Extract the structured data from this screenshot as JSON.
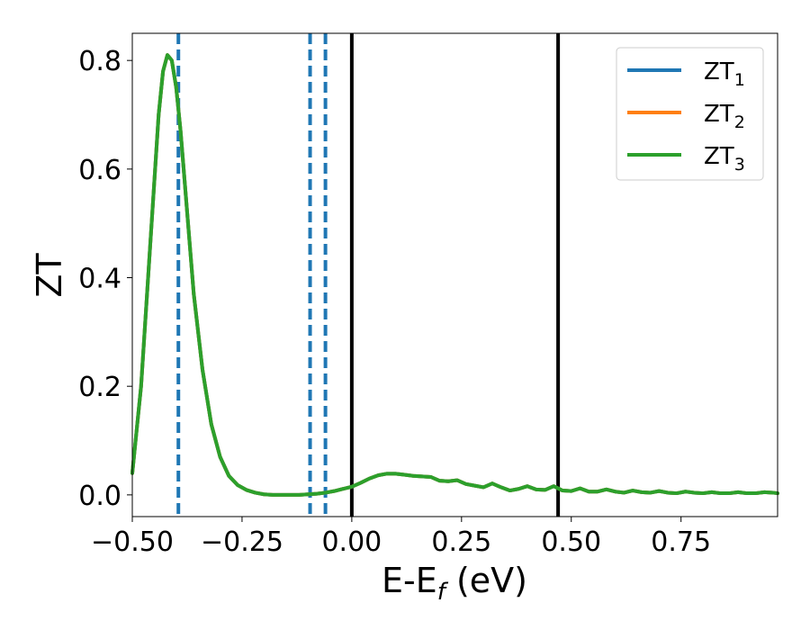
{
  "chart_data": {
    "type": "line",
    "xlabel": {
      "main": "E-E",
      "sub": "f",
      "suffix": " (eV)"
    },
    "ylabel": "ZT",
    "xlim": [
      -0.5,
      0.97
    ],
    "ylim": [
      -0.04,
      0.85
    ],
    "xticks": [
      {
        "value": -0.5,
        "label": "−0.50"
      },
      {
        "value": -0.25,
        "label": "−0.25"
      },
      {
        "value": 0.0,
        "label": "0.00"
      },
      {
        "value": 0.25,
        "label": "0.25"
      },
      {
        "value": 0.5,
        "label": "0.50"
      },
      {
        "value": 0.75,
        "label": "0.75"
      }
    ],
    "yticks": [
      {
        "value": 0.0,
        "label": "0.0"
      },
      {
        "value": 0.2,
        "label": "0.2"
      },
      {
        "value": 0.4,
        "label": "0.4"
      },
      {
        "value": 0.6,
        "label": "0.6"
      },
      {
        "value": 0.8,
        "label": "0.8"
      }
    ],
    "grid": false,
    "legend_position": "top-right",
    "series": [
      {
        "name": "ZT",
        "name_sub": "1",
        "color": "#1f77b4",
        "x": [
          -0.5,
          -0.48,
          -0.46,
          -0.44,
          -0.43,
          -0.42,
          -0.41,
          -0.4,
          -0.39,
          -0.38,
          -0.37,
          -0.36,
          -0.34,
          -0.32,
          -0.3,
          -0.28,
          -0.26,
          -0.24,
          -0.22,
          -0.2,
          -0.18,
          -0.16,
          -0.14,
          -0.12,
          -0.1,
          -0.08,
          -0.06,
          -0.04,
          -0.02,
          0.0,
          0.02,
          0.04,
          0.06,
          0.08,
          0.1,
          0.12,
          0.14,
          0.16,
          0.18,
          0.2,
          0.22,
          0.24,
          0.26,
          0.28,
          0.3,
          0.32,
          0.34,
          0.36,
          0.38,
          0.4,
          0.42,
          0.44,
          0.46,
          0.48,
          0.5,
          0.52,
          0.54,
          0.56,
          0.58,
          0.6,
          0.62,
          0.64,
          0.66,
          0.68,
          0.7,
          0.72,
          0.74,
          0.76,
          0.78,
          0.8,
          0.82,
          0.84,
          0.86,
          0.88,
          0.9,
          0.92,
          0.94,
          0.96,
          0.97
        ],
        "y": [
          0.04,
          0.2,
          0.45,
          0.7,
          0.78,
          0.81,
          0.8,
          0.75,
          0.67,
          0.57,
          0.47,
          0.37,
          0.23,
          0.13,
          0.07,
          0.035,
          0.018,
          0.009,
          0.004,
          0.001,
          0.0,
          0.0,
          0.0,
          0.0,
          0.001,
          0.002,
          0.004,
          0.007,
          0.011,
          0.015,
          0.022,
          0.03,
          0.036,
          0.039,
          0.039,
          0.037,
          0.035,
          0.034,
          0.033,
          0.026,
          0.025,
          0.027,
          0.02,
          0.017,
          0.014,
          0.021,
          0.014,
          0.008,
          0.011,
          0.016,
          0.01,
          0.009,
          0.016,
          0.008,
          0.007,
          0.012,
          0.006,
          0.006,
          0.01,
          0.006,
          0.004,
          0.008,
          0.005,
          0.004,
          0.007,
          0.004,
          0.003,
          0.006,
          0.004,
          0.003,
          0.005,
          0.003,
          0.003,
          0.005,
          0.003,
          0.003,
          0.005,
          0.004,
          0.003
        ]
      },
      {
        "name": "ZT",
        "name_sub": "2",
        "color": "#ff7f0e",
        "x": [
          -0.5,
          -0.48,
          -0.46,
          -0.44,
          -0.43,
          -0.42,
          -0.41,
          -0.4,
          -0.39,
          -0.38,
          -0.37,
          -0.36,
          -0.34,
          -0.32,
          -0.3,
          -0.28,
          -0.26,
          -0.24,
          -0.22,
          -0.2,
          -0.18,
          -0.16,
          -0.14,
          -0.12,
          -0.1,
          -0.08,
          -0.06,
          -0.04,
          -0.02,
          0.0,
          0.02,
          0.04,
          0.06,
          0.08,
          0.1,
          0.12,
          0.14,
          0.16,
          0.18,
          0.2,
          0.22,
          0.24,
          0.26,
          0.28,
          0.3,
          0.32,
          0.34,
          0.36,
          0.38,
          0.4,
          0.42,
          0.44,
          0.46,
          0.48,
          0.5,
          0.52,
          0.54,
          0.56,
          0.58,
          0.6,
          0.62,
          0.64,
          0.66,
          0.68,
          0.7,
          0.72,
          0.74,
          0.76,
          0.78,
          0.8,
          0.82,
          0.84,
          0.86,
          0.88,
          0.9,
          0.92,
          0.94,
          0.96,
          0.97
        ],
        "y": [
          0.04,
          0.2,
          0.45,
          0.7,
          0.78,
          0.81,
          0.8,
          0.75,
          0.67,
          0.57,
          0.47,
          0.37,
          0.23,
          0.13,
          0.07,
          0.035,
          0.018,
          0.009,
          0.004,
          0.001,
          0.0,
          0.0,
          0.0,
          0.0,
          0.001,
          0.002,
          0.004,
          0.007,
          0.011,
          0.015,
          0.022,
          0.03,
          0.036,
          0.039,
          0.039,
          0.037,
          0.035,
          0.034,
          0.033,
          0.026,
          0.025,
          0.027,
          0.02,
          0.017,
          0.014,
          0.021,
          0.014,
          0.008,
          0.011,
          0.016,
          0.01,
          0.009,
          0.016,
          0.008,
          0.007,
          0.012,
          0.006,
          0.006,
          0.01,
          0.006,
          0.004,
          0.008,
          0.005,
          0.004,
          0.007,
          0.004,
          0.003,
          0.006,
          0.004,
          0.003,
          0.005,
          0.003,
          0.003,
          0.005,
          0.003,
          0.003,
          0.005,
          0.004,
          0.003
        ]
      },
      {
        "name": "ZT",
        "name_sub": "3",
        "color": "#2ca02c",
        "x": [
          -0.5,
          -0.48,
          -0.46,
          -0.44,
          -0.43,
          -0.42,
          -0.41,
          -0.4,
          -0.39,
          -0.38,
          -0.37,
          -0.36,
          -0.34,
          -0.32,
          -0.3,
          -0.28,
          -0.26,
          -0.24,
          -0.22,
          -0.2,
          -0.18,
          -0.16,
          -0.14,
          -0.12,
          -0.1,
          -0.08,
          -0.06,
          -0.04,
          -0.02,
          0.0,
          0.02,
          0.04,
          0.06,
          0.08,
          0.1,
          0.12,
          0.14,
          0.16,
          0.18,
          0.2,
          0.22,
          0.24,
          0.26,
          0.28,
          0.3,
          0.32,
          0.34,
          0.36,
          0.38,
          0.4,
          0.42,
          0.44,
          0.46,
          0.48,
          0.5,
          0.52,
          0.54,
          0.56,
          0.58,
          0.6,
          0.62,
          0.64,
          0.66,
          0.68,
          0.7,
          0.72,
          0.74,
          0.76,
          0.78,
          0.8,
          0.82,
          0.84,
          0.86,
          0.88,
          0.9,
          0.92,
          0.94,
          0.96,
          0.97
        ],
        "y": [
          0.04,
          0.2,
          0.45,
          0.7,
          0.78,
          0.81,
          0.8,
          0.75,
          0.67,
          0.57,
          0.47,
          0.37,
          0.23,
          0.13,
          0.07,
          0.035,
          0.018,
          0.009,
          0.004,
          0.001,
          0.0,
          0.0,
          0.0,
          0.0,
          0.001,
          0.002,
          0.004,
          0.007,
          0.011,
          0.015,
          0.022,
          0.03,
          0.036,
          0.039,
          0.039,
          0.037,
          0.035,
          0.034,
          0.033,
          0.026,
          0.025,
          0.027,
          0.02,
          0.017,
          0.014,
          0.021,
          0.014,
          0.008,
          0.011,
          0.016,
          0.01,
          0.009,
          0.016,
          0.008,
          0.007,
          0.012,
          0.006,
          0.006,
          0.01,
          0.006,
          0.004,
          0.008,
          0.005,
          0.004,
          0.007,
          0.004,
          0.003,
          0.006,
          0.004,
          0.003,
          0.005,
          0.003,
          0.003,
          0.005,
          0.003,
          0.003,
          0.005,
          0.004,
          0.003
        ]
      }
    ],
    "vlines": [
      {
        "x": -0.395,
        "style": "dashed",
        "color": "#1f77b4"
      },
      {
        "x": -0.095,
        "style": "dashed",
        "color": "#1f77b4"
      },
      {
        "x": -0.06,
        "style": "dashed",
        "color": "#1f77b4"
      },
      {
        "x": 0.0,
        "style": "solid",
        "color": "#000000"
      },
      {
        "x": 0.47,
        "style": "solid",
        "color": "#000000"
      }
    ]
  }
}
